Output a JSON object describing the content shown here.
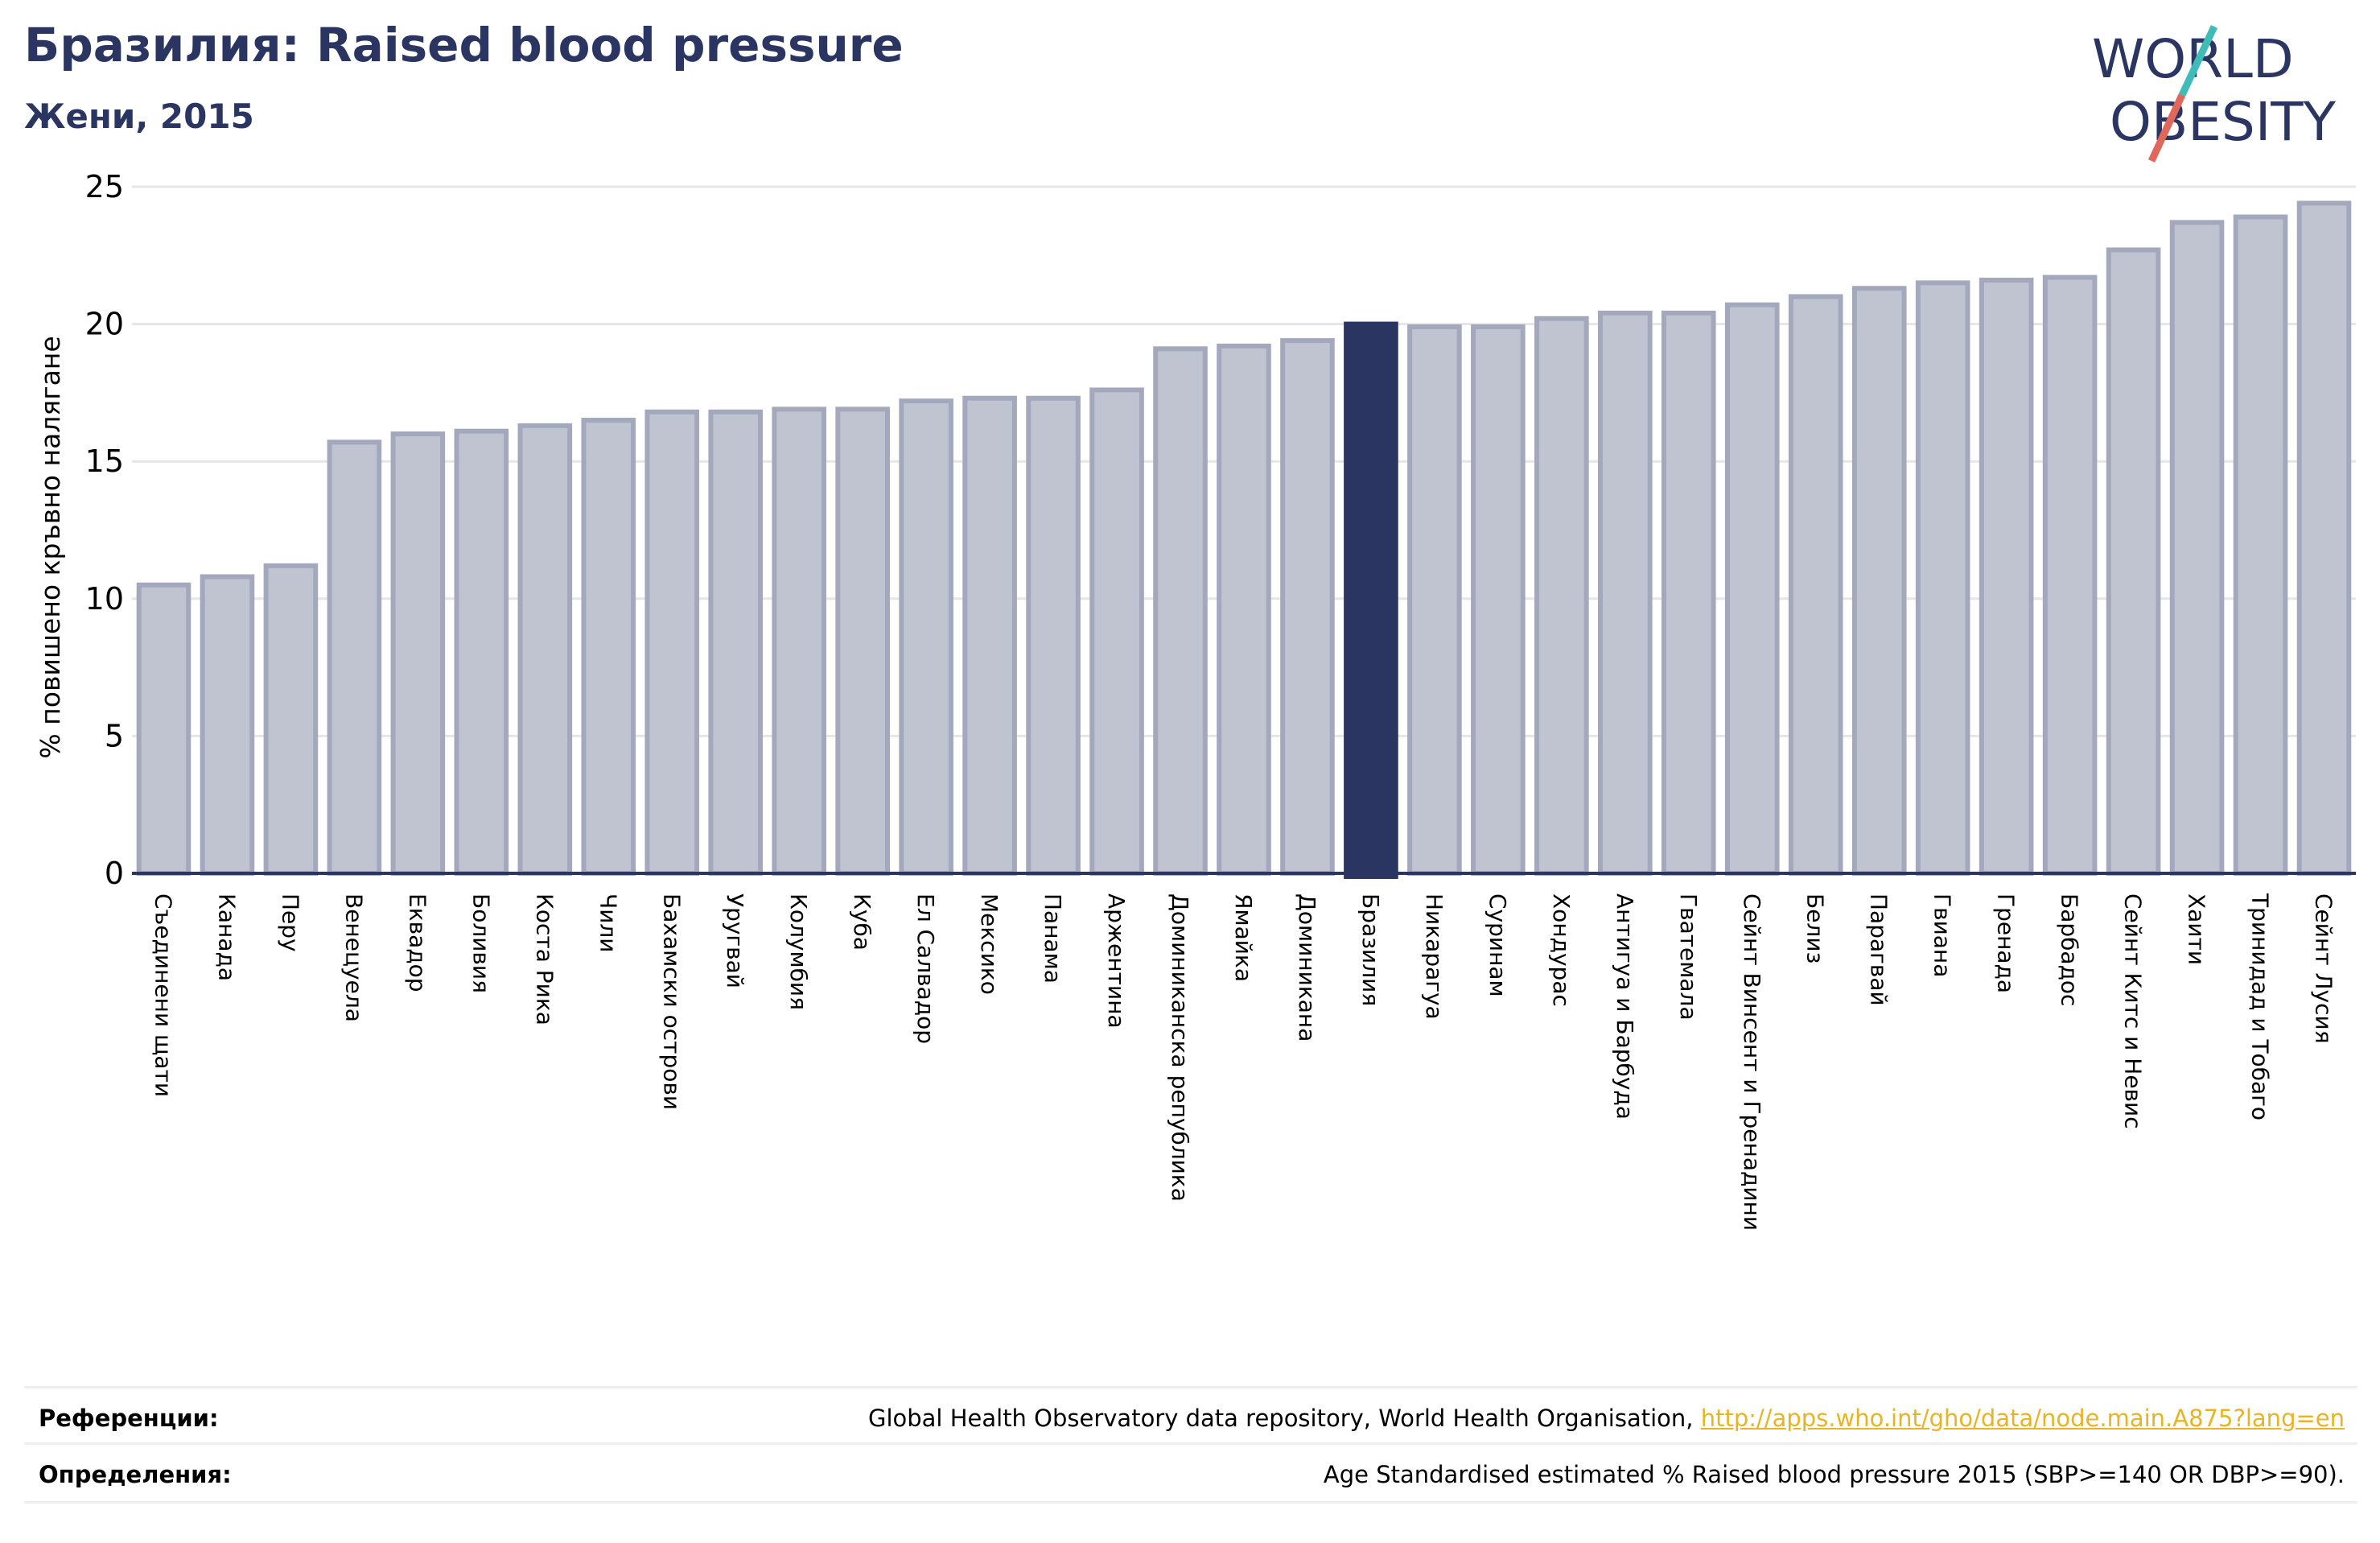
{
  "header": {
    "title": "Бразилия: Raised blood pressure",
    "subtitle": "Жени, 2015"
  },
  "logo": {
    "line1": "WORLD",
    "line2": "OBESITY",
    "text_color": "#2b3561",
    "slash_top_color": "#3fbcb8",
    "slash_bottom_color": "#e0685b"
  },
  "colors": {
    "bar_fill": "#c0c3d0",
    "bar_stroke": "#a4a8bd",
    "highlight": "#2b3561",
    "grid": "#e6e6e6",
    "axis": "#2b3561"
  },
  "chart_data": {
    "type": "bar",
    "ylabel": "% повишено кръвно налягане",
    "ylim": [
      0,
      25
    ],
    "yticks": [
      0,
      5,
      10,
      15,
      20,
      25
    ],
    "grid": true,
    "highlight": "Бразилия",
    "categories": [
      "Съединени щати",
      "Канада",
      "Перу",
      "Венецуела",
      "Еквадор",
      "Боливия",
      "Коста Рика",
      "Чили",
      "Бахамски острови",
      "Уругвай",
      "Колумбия",
      "Куба",
      "Ел Салвадор",
      "Мексико",
      "Панама",
      "Аржентина",
      "Доминиканска република",
      "Ямайка",
      "Доминикана",
      "Бразилия",
      "Никарагуа",
      "Суринам",
      "Хондурас",
      "Антигуа и Барбуда",
      "Гватемала",
      "Сейнт Винсент и Гренадини",
      "Белиз",
      "Парагвай",
      "Гвиана",
      "Гренада",
      "Барбадос",
      "Сейнт Китс и Невис",
      "Хаити",
      "Тринидад и Тобаго",
      "Сейнт Лусия"
    ],
    "values": [
      10.5,
      10.8,
      11.2,
      15.7,
      16.0,
      16.1,
      16.3,
      16.5,
      16.8,
      16.8,
      16.9,
      16.9,
      17.2,
      17.3,
      17.3,
      17.6,
      19.1,
      19.2,
      19.4,
      20.0,
      19.9,
      19.9,
      20.2,
      20.4,
      20.4,
      20.7,
      21.0,
      21.3,
      21.5,
      21.6,
      21.7,
      22.7,
      23.7,
      23.9,
      24.4
    ]
  },
  "references": {
    "label": "Референции:",
    "text": "Global Health Observatory data repository, World Health Organisation, ",
    "link": "http://apps.who.int/gho/data/node.main.A875?lang=en"
  },
  "definitions": {
    "label": "Определения:",
    "text": "Age Standardised estimated % Raised blood pressure 2015 (SBP>=140 OR DBP>=90)."
  }
}
